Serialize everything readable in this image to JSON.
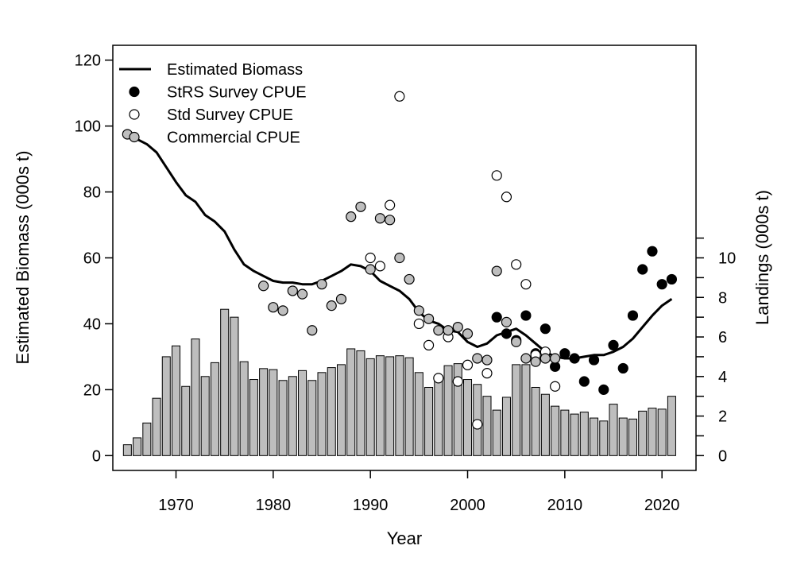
{
  "chart_data": {
    "type": "bar+line+scatter",
    "xlabel": "Year",
    "ylabel_left": "Estimated Biomass (000s t)",
    "ylabel_right": "Landings (000s t)",
    "xlim": [
      1963.5,
      2023.5
    ],
    "ylim_left": [
      -4.5,
      124.5
    ],
    "ylim_right": [
      0,
      10
    ],
    "x_ticks": [
      1970,
      1980,
      1990,
      2000,
      2010,
      2020
    ],
    "y_ticks_left": [
      0,
      20,
      40,
      60,
      80,
      100,
      120
    ],
    "y_ticks_right": [
      0,
      2,
      4,
      6,
      8,
      10
    ],
    "y_minor_ticks_right": [
      1,
      3,
      5,
      7,
      9,
      11
    ],
    "grid": false,
    "legend_position": "top-left",
    "legend": [
      {
        "label": "Estimated Biomass",
        "marker": "line",
        "color": "#000000"
      },
      {
        "label": "StRS Survey CPUE",
        "marker": "circle",
        "color": "#000000"
      },
      {
        "label": "Std Survey CPUE",
        "marker": "circle",
        "color": "#ffffff"
      },
      {
        "label": "Commercial CPUE",
        "marker": "circle",
        "color": "#bebebe"
      }
    ],
    "landings": {
      "axis": "right",
      "color": "#bebebe",
      "x": [
        1965,
        1966,
        1967,
        1968,
        1969,
        1970,
        1971,
        1972,
        1973,
        1974,
        1975,
        1976,
        1977,
        1978,
        1979,
        1980,
        1981,
        1982,
        1983,
        1984,
        1985,
        1986,
        1987,
        1988,
        1989,
        1990,
        1991,
        1992,
        1993,
        1994,
        1995,
        1996,
        1997,
        1998,
        1999,
        2000,
        2001,
        2002,
        2003,
        2004,
        2005,
        2006,
        2007,
        2008,
        2009,
        2010,
        2011,
        2012,
        2013,
        2014,
        2015,
        2016,
        2017,
        2018,
        2019,
        2020,
        2021
      ],
      "values": [
        0.55,
        0.9,
        1.65,
        2.9,
        5.0,
        5.55,
        3.5,
        5.9,
        4.0,
        4.7,
        7.4,
        7.0,
        4.75,
        3.85,
        4.4,
        4.35,
        3.8,
        4.0,
        4.3,
        3.8,
        4.2,
        4.45,
        4.6,
        5.4,
        5.3,
        4.9,
        5.05,
        5.0,
        5.05,
        4.95,
        4.2,
        3.45,
        3.95,
        4.55,
        4.65,
        3.85,
        3.6,
        3.0,
        2.3,
        2.95,
        4.6,
        4.6,
        3.45,
        3.1,
        2.5,
        2.3,
        2.1,
        2.2,
        1.9,
        1.75,
        2.6,
        1.9,
        1.85,
        2.25,
        2.4,
        2.35,
        3.0
      ]
    },
    "series": [
      {
        "name": "Estimated Biomass",
        "type": "line",
        "axis": "left",
        "x": [
          1965,
          1966,
          1967,
          1968,
          1969,
          1970,
          1971,
          1972,
          1973,
          1974,
          1975,
          1976,
          1977,
          1978,
          1979,
          1980,
          1981,
          1982,
          1983,
          1984,
          1985,
          1986,
          1987,
          1988,
          1989,
          1990,
          1991,
          1992,
          1993,
          1994,
          1995,
          1996,
          1997,
          1998,
          1999,
          2000,
          2001,
          2002,
          2003,
          2004,
          2005,
          2006,
          2007,
          2008,
          2009,
          2010,
          2011,
          2012,
          2013,
          2014,
          2015,
          2016,
          2017,
          2018,
          2019,
          2020,
          2021
        ],
        "y": [
          97.5,
          96,
          94.5,
          92,
          87.5,
          83,
          79,
          77,
          73,
          71,
          68,
          62.5,
          58,
          56,
          54.5,
          53,
          52.5,
          52.5,
          52,
          52,
          53,
          54.5,
          56,
          58,
          57.5,
          56,
          53,
          51.5,
          50,
          47.5,
          43.5,
          41,
          40,
          38,
          37.5,
          34.5,
          33,
          34,
          36.5,
          37.5,
          38.5,
          36.5,
          34,
          31.5,
          30,
          29.5,
          29.5,
          30,
          30.5,
          30.5,
          31.5,
          33,
          35.5,
          39,
          42.5,
          45.5,
          47.5
        ]
      },
      {
        "name": "StRS Survey CPUE",
        "type": "scatter",
        "axis": "left",
        "fill": "#000000",
        "x": [
          2003,
          2004,
          2005,
          2006,
          2007,
          2008,
          2009,
          2010,
          2011,
          2012,
          2013,
          2014,
          2015,
          2016,
          2017,
          2018,
          2019,
          2020,
          2021
        ],
        "y": [
          42,
          37,
          35,
          42.5,
          31,
          38.5,
          27,
          31,
          29.5,
          22.5,
          29,
          20,
          33.5,
          26.5,
          42.5,
          56.5,
          62,
          52,
          53.5
        ]
      },
      {
        "name": "Std Survey CPUE",
        "type": "scatter",
        "axis": "left",
        "fill": "#ffffff",
        "x": [
          1990,
          1991,
          1992,
          1993,
          1995,
          1996,
          1997,
          1998,
          1999,
          2000,
          2001,
          2002,
          2003,
          2004,
          2005,
          2006,
          2007,
          2008,
          2009
        ],
        "y": [
          60,
          57.5,
          76,
          109,
          40,
          33.5,
          23.5,
          36,
          22.5,
          27.5,
          9.5,
          25,
          85,
          78.5,
          58,
          52,
          30.5,
          31.5,
          21
        ]
      },
      {
        "name": "Commercial CPUE",
        "type": "scatter",
        "axis": "left",
        "fill": "#bebebe",
        "x": [
          1965,
          1979,
          1980,
          1981,
          1982,
          1983,
          1984,
          1985,
          1986,
          1987,
          1988,
          1989,
          1990,
          1991,
          1992,
          1993,
          1994,
          1995,
          1996,
          1997,
          1998,
          1999,
          2000,
          2001,
          2002,
          2003,
          2004,
          2005,
          2006,
          2007,
          2008,
          2009
        ],
        "y": [
          97.5,
          51.5,
          45,
          44,
          50,
          49,
          38,
          52,
          45.5,
          47.5,
          72.5,
          75.5,
          56.5,
          72,
          71.5,
          60,
          53.5,
          44,
          41.5,
          38,
          38,
          39,
          37,
          29.5,
          29,
          56,
          40.5,
          34.5,
          29.5,
          28.5,
          29.5,
          29.5
        ]
      }
    ]
  }
}
